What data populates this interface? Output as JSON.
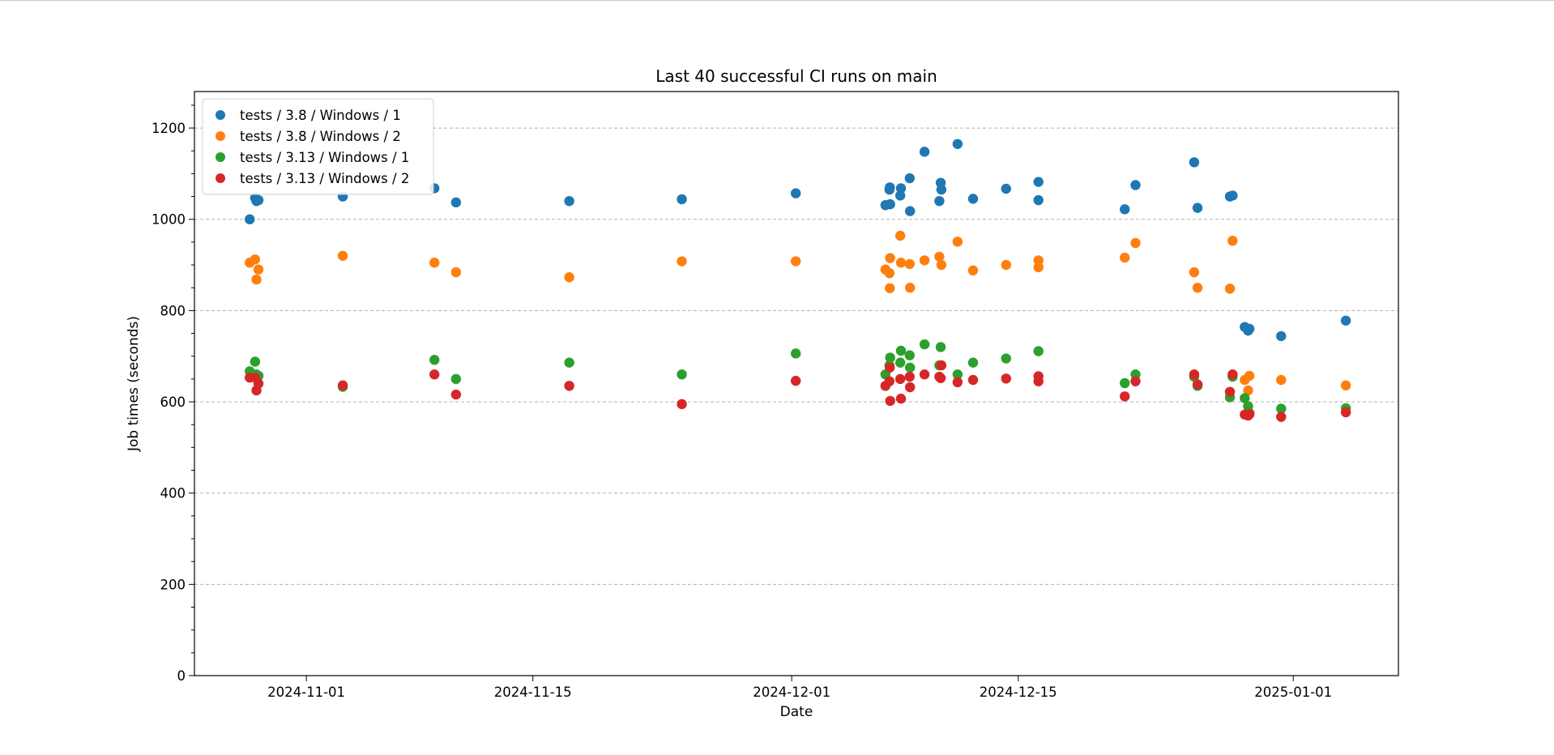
{
  "chart_data": {
    "type": "scatter",
    "title": "Last 40 successful CI runs on main",
    "xlabel": "Date",
    "ylabel": "Job times (seconds)",
    "xlim": [
      "2024-10-25T02:00",
      "2025-01-07T12:00"
    ],
    "ylim": [
      0,
      1280
    ],
    "x_ticks": [
      "2024-11-01",
      "2024-11-15",
      "2024-12-01",
      "2024-12-15",
      "2025-01-01"
    ],
    "y_ticks": [
      0,
      200,
      400,
      600,
      800,
      1000,
      1200
    ],
    "y_minor_step": 50,
    "grid": "y-major-dashed",
    "legend_position": "top-left",
    "series": [
      {
        "name": "tests / 3.8 / Windows / 1",
        "color": "#1f77b4",
        "points": [
          [
            "2024-10-28T12:00",
            1000
          ],
          [
            "2024-10-28T20:00",
            1047
          ],
          [
            "2024-10-28T22:00",
            1040
          ],
          [
            "2024-10-29T01:00",
            1042
          ],
          [
            "2024-11-03T06:00",
            1050
          ],
          [
            "2024-11-08T22:00",
            1068
          ],
          [
            "2024-11-10T06:00",
            1037
          ],
          [
            "2024-11-17T06:00",
            1040
          ],
          [
            "2024-11-24T05:00",
            1044
          ],
          [
            "2024-12-01T06:00",
            1057
          ],
          [
            "2024-12-06T19:00",
            1031
          ],
          [
            "2024-12-07T02:00",
            1033
          ],
          [
            "2024-12-07T01:00",
            1065
          ],
          [
            "2024-12-07T01:30",
            1070
          ],
          [
            "2024-12-07T18:00",
            1068
          ],
          [
            "2024-12-07T17:00",
            1052
          ],
          [
            "2024-12-08T07:00",
            1090
          ],
          [
            "2024-12-08T07:30",
            1018
          ],
          [
            "2024-12-09T05:00",
            1148
          ],
          [
            "2024-12-10T03:00",
            1040
          ],
          [
            "2024-12-10T05:00",
            1080
          ],
          [
            "2024-12-10T06:00",
            1065
          ],
          [
            "2024-12-11T06:00",
            1165
          ],
          [
            "2024-12-12T05:00",
            1045
          ],
          [
            "2024-12-14T06:00",
            1067
          ],
          [
            "2024-12-16T06:00",
            1082
          ],
          [
            "2024-12-16T06:00",
            1042
          ],
          [
            "2024-12-21T14:00",
            1022
          ],
          [
            "2024-12-22T06:00",
            1075
          ],
          [
            "2024-12-25T21:00",
            1125
          ],
          [
            "2024-12-26T02:00",
            1025
          ],
          [
            "2024-12-28T02:00",
            1050
          ],
          [
            "2024-12-28T06:00",
            1052
          ],
          [
            "2024-12-29T00:00",
            764
          ],
          [
            "2024-12-29T05:00",
            756
          ],
          [
            "2024-12-29T07:00",
            760
          ],
          [
            "2024-12-31T06:00",
            744
          ],
          [
            "2025-01-04T06:00",
            778
          ]
        ]
      },
      {
        "name": "tests / 3.8 / Windows / 2",
        "color": "#ff7f0e",
        "points": [
          [
            "2024-10-28T12:00",
            905
          ],
          [
            "2024-10-28T20:00",
            912
          ],
          [
            "2024-10-28T22:00",
            868
          ],
          [
            "2024-10-29T01:00",
            890
          ],
          [
            "2024-11-03T06:00",
            920
          ],
          [
            "2024-11-08T22:00",
            905
          ],
          [
            "2024-11-10T06:00",
            884
          ],
          [
            "2024-11-17T06:00",
            873
          ],
          [
            "2024-11-24T05:00",
            908
          ],
          [
            "2024-12-01T06:00",
            908
          ],
          [
            "2024-12-06T19:00",
            890
          ],
          [
            "2024-12-07T02:00",
            915
          ],
          [
            "2024-12-07T01:00",
            882
          ],
          [
            "2024-12-07T01:30",
            849
          ],
          [
            "2024-12-07T17:00",
            964
          ],
          [
            "2024-12-07T18:00",
            905
          ],
          [
            "2024-12-08T07:00",
            902
          ],
          [
            "2024-12-08T07:30",
            850
          ],
          [
            "2024-12-09T05:00",
            910
          ],
          [
            "2024-12-10T03:00",
            918
          ],
          [
            "2024-12-10T06:00",
            900
          ],
          [
            "2024-12-11T06:00",
            951
          ],
          [
            "2024-12-12T05:00",
            888
          ],
          [
            "2024-12-14T06:00",
            900
          ],
          [
            "2024-12-16T06:00",
            910
          ],
          [
            "2024-12-16T06:00",
            895
          ],
          [
            "2024-12-21T14:00",
            916
          ],
          [
            "2024-12-22T06:00",
            948
          ],
          [
            "2024-12-25T21:00",
            884
          ],
          [
            "2024-12-26T02:00",
            850
          ],
          [
            "2024-12-28T02:00",
            848
          ],
          [
            "2024-12-28T06:00",
            953
          ],
          [
            "2024-12-29T00:00",
            648
          ],
          [
            "2024-12-29T05:00",
            625
          ],
          [
            "2024-12-29T07:00",
            657
          ],
          [
            "2024-12-31T06:00",
            648
          ],
          [
            "2025-01-04T06:00",
            636
          ]
        ]
      },
      {
        "name": "tests / 3.13 / Windows / 1",
        "color": "#2ca02c",
        "points": [
          [
            "2024-10-28T12:00",
            667
          ],
          [
            "2024-10-28T20:00",
            688
          ],
          [
            "2024-10-28T22:00",
            660
          ],
          [
            "2024-10-29T01:00",
            657
          ],
          [
            "2024-11-03T06:00",
            633
          ],
          [
            "2024-11-08T22:00",
            692
          ],
          [
            "2024-11-10T06:00",
            650
          ],
          [
            "2024-11-17T06:00",
            686
          ],
          [
            "2024-11-24T05:00",
            660
          ],
          [
            "2024-12-01T06:00",
            706
          ],
          [
            "2024-12-06T19:00",
            660
          ],
          [
            "2024-12-07T02:00",
            697
          ],
          [
            "2024-12-07T01:00",
            680
          ],
          [
            "2024-12-07T18:00",
            712
          ],
          [
            "2024-12-07T17:00",
            686
          ],
          [
            "2024-12-08T07:00",
            702
          ],
          [
            "2024-12-08T07:30",
            675
          ],
          [
            "2024-12-09T05:00",
            726
          ],
          [
            "2024-12-10T03:00",
            680
          ],
          [
            "2024-12-10T05:00",
            720
          ],
          [
            "2024-12-11T06:00",
            660
          ],
          [
            "2024-12-12T05:00",
            686
          ],
          [
            "2024-12-14T06:00",
            695
          ],
          [
            "2024-12-16T06:00",
            711
          ],
          [
            "2024-12-21T14:00",
            641
          ],
          [
            "2024-12-22T06:00",
            660
          ],
          [
            "2024-12-25T21:00",
            655
          ],
          [
            "2024-12-26T02:00",
            635
          ],
          [
            "2024-12-28T02:00",
            610
          ],
          [
            "2024-12-28T06:00",
            655
          ],
          [
            "2024-12-29T00:00",
            608
          ],
          [
            "2024-12-29T05:00",
            590
          ],
          [
            "2024-12-29T07:00",
            575
          ],
          [
            "2024-12-31T06:00",
            585
          ],
          [
            "2025-01-04T06:00",
            586
          ]
        ]
      },
      {
        "name": "tests / 3.13 / Windows / 2",
        "color": "#d62728",
        "points": [
          [
            "2024-10-28T12:00",
            653
          ],
          [
            "2024-10-28T20:00",
            653
          ],
          [
            "2024-10-28T22:00",
            625
          ],
          [
            "2024-10-29T01:00",
            640
          ],
          [
            "2024-11-03T06:00",
            636
          ],
          [
            "2024-11-08T22:00",
            660
          ],
          [
            "2024-11-10T06:00",
            616
          ],
          [
            "2024-11-17T06:00",
            635
          ],
          [
            "2024-11-24T05:00",
            595
          ],
          [
            "2024-12-01T06:00",
            646
          ],
          [
            "2024-12-06T19:00",
            635
          ],
          [
            "2024-12-07T02:00",
            602
          ],
          [
            "2024-12-07T01:00",
            645
          ],
          [
            "2024-12-07T01:30",
            675
          ],
          [
            "2024-12-07T17:00",
            650
          ],
          [
            "2024-12-07T18:00",
            607
          ],
          [
            "2024-12-08T07:00",
            655
          ],
          [
            "2024-12-08T07:30",
            632
          ],
          [
            "2024-12-09T05:00",
            660
          ],
          [
            "2024-12-10T03:00",
            655
          ],
          [
            "2024-12-10T06:00",
            680
          ],
          [
            "2024-12-10T05:00",
            652
          ],
          [
            "2024-12-11T06:00",
            643
          ],
          [
            "2024-12-12T05:00",
            648
          ],
          [
            "2024-12-14T06:00",
            651
          ],
          [
            "2024-12-16T06:00",
            656
          ],
          [
            "2024-12-16T06:00",
            645
          ],
          [
            "2024-12-21T14:00",
            612
          ],
          [
            "2024-12-22T06:00",
            645
          ],
          [
            "2024-12-25T21:00",
            660
          ],
          [
            "2024-12-26T02:00",
            638
          ],
          [
            "2024-12-28T02:00",
            622
          ],
          [
            "2024-12-28T06:00",
            660
          ],
          [
            "2024-12-29T00:00",
            572
          ],
          [
            "2024-12-29T05:00",
            570
          ],
          [
            "2024-12-29T07:00",
            573
          ],
          [
            "2024-12-31T06:00",
            567
          ],
          [
            "2025-01-04T06:00",
            577
          ]
        ]
      }
    ]
  }
}
